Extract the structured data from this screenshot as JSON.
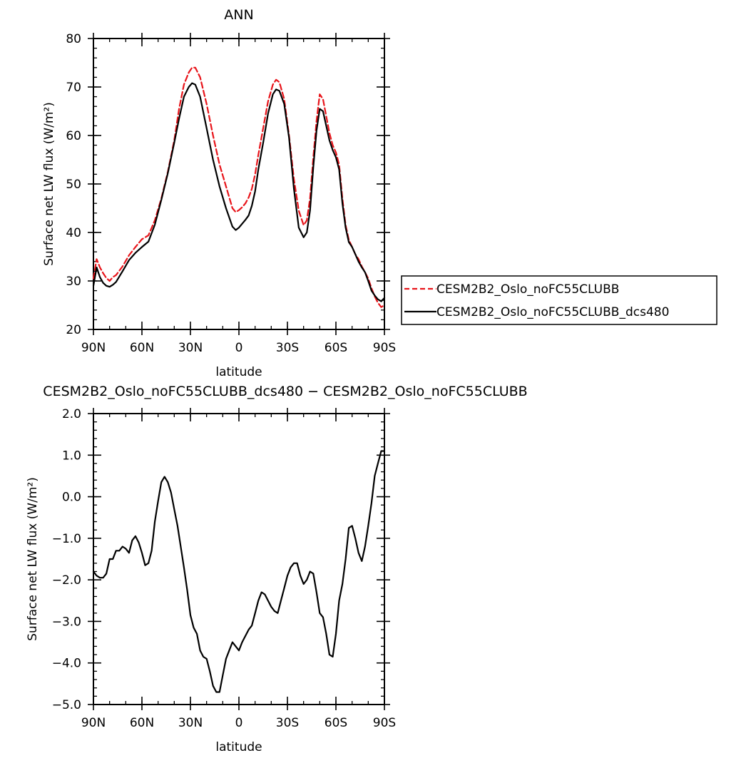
{
  "chart_data": [
    {
      "type": "line",
      "title": "ANN",
      "xlabel": "latitude",
      "ylabel": "Surface net LW flux (W/m²)",
      "xlim": [
        90,
        -90
      ],
      "ylim": [
        20,
        80
      ],
      "x_ticks": [
        90,
        60,
        30,
        0,
        -30,
        -60,
        -90
      ],
      "x_tick_labels": [
        "90N",
        "60N",
        "30N",
        "0",
        "30S",
        "60S",
        "90S"
      ],
      "y_ticks": [
        20,
        30,
        40,
        50,
        60,
        70,
        80
      ],
      "y_tick_labels": [
        "20",
        "30",
        "40",
        "50",
        "60",
        "70",
        "80"
      ],
      "legend_position": "right",
      "series": [
        {
          "name": "CESM2B2_Oslo_noFC55CLUBB",
          "color": "#e8141a",
          "dash": "dashed",
          "x": [
            90,
            88,
            86,
            84,
            82,
            80,
            78,
            76,
            72,
            68,
            64,
            60,
            56,
            52,
            48,
            44,
            40,
            37,
            34,
            31,
            29,
            27,
            24,
            20,
            16,
            12,
            8,
            4,
            2,
            0,
            -2,
            -4,
            -6,
            -8,
            -10,
            -12,
            -15,
            -18,
            -21,
            -23,
            -25,
            -28,
            -31,
            -34,
            -37,
            -40,
            -42,
            -44,
            -46,
            -48,
            -50,
            -52,
            -54,
            -56,
            -58,
            -60,
            -62,
            -64,
            -66,
            -68,
            -70,
            -72,
            -74,
            -76,
            -78,
            -80,
            -82,
            -84,
            -86,
            -88,
            -90
          ],
          "y": [
            30.5,
            34.5,
            32.8,
            31.6,
            30.6,
            30.0,
            30.8,
            31.2,
            33.0,
            35.3,
            37.0,
            38.6,
            39.4,
            42.5,
            47.0,
            52.5,
            59.0,
            65.5,
            70.5,
            73.0,
            74.0,
            74.0,
            72.0,
            66.5,
            60.0,
            54.0,
            49.5,
            45.0,
            44.2,
            44.6,
            45.2,
            46.0,
            47.2,
            49.0,
            52.0,
            56.0,
            61.5,
            67.0,
            70.5,
            71.5,
            71.0,
            67.5,
            60.0,
            51.0,
            44.5,
            41.5,
            42.5,
            47.0,
            55.5,
            63.0,
            68.5,
            67.5,
            64.0,
            60.5,
            58.0,
            56.5,
            54.0,
            47.0,
            41.5,
            38.5,
            37.0,
            35.5,
            34.5,
            33.0,
            31.8,
            30.5,
            28.5,
            26.8,
            25.5,
            24.6,
            25.0
          ]
        },
        {
          "name": "CESM2B2_Oslo_noFC55CLUBB_dcs480",
          "color": "#000000",
          "dash": "solid",
          "x": [
            90,
            88,
            86,
            84,
            82,
            80,
            78,
            76,
            72,
            68,
            64,
            60,
            56,
            52,
            48,
            44,
            40,
            37,
            34,
            31,
            29,
            27,
            24,
            20,
            16,
            12,
            8,
            4,
            2,
            0,
            -2,
            -4,
            -6,
            -8,
            -10,
            -12,
            -15,
            -18,
            -21,
            -23,
            -25,
            -28,
            -31,
            -34,
            -37,
            -40,
            -42,
            -44,
            -46,
            -48,
            -50,
            -52,
            -54,
            -56,
            -58,
            -60,
            -62,
            -64,
            -66,
            -68,
            -70,
            -72,
            -74,
            -76,
            -78,
            -80,
            -82,
            -84,
            -86,
            -88,
            -90
          ],
          "y": [
            29.0,
            32.8,
            30.8,
            29.6,
            29.0,
            28.8,
            29.2,
            29.8,
            32.0,
            34.3,
            35.8,
            37.0,
            38.1,
            41.6,
            46.7,
            52.2,
            58.5,
            63.5,
            68.0,
            70.0,
            70.8,
            70.5,
            68.0,
            61.5,
            55.0,
            49.5,
            45.0,
            41.2,
            40.5,
            41.0,
            41.8,
            42.6,
            43.5,
            45.5,
            48.5,
            53.0,
            58.5,
            64.5,
            68.5,
            69.5,
            69.2,
            66.5,
            59.5,
            49.0,
            41.0,
            39.0,
            40.0,
            44.5,
            53.5,
            61.0,
            65.5,
            65.0,
            62.0,
            59.0,
            57.0,
            55.5,
            53.0,
            46.0,
            41.0,
            38.0,
            37.0,
            35.5,
            34.0,
            32.8,
            31.8,
            30.0,
            28.0,
            27.0,
            26.2,
            25.8,
            26.5
          ]
        }
      ]
    },
    {
      "type": "line",
      "title": "CESM2B2_Oslo_noFC55CLUBB_dcs480 − CESM2B2_Oslo_noFC55CLUBB",
      "xlabel": "latitude",
      "ylabel": "Surface net LW flux (W/m²)",
      "xlim": [
        90,
        -90
      ],
      "ylim": [
        -5.0,
        2.0
      ],
      "x_ticks": [
        90,
        60,
        30,
        0,
        -30,
        -60,
        -90
      ],
      "x_tick_labels": [
        "90N",
        "60N",
        "30N",
        "0",
        "30S",
        "60S",
        "90S"
      ],
      "y_ticks": [
        2.0,
        1.0,
        0.0,
        -1.0,
        -2.0,
        -3.0,
        -4.0,
        -5.0
      ],
      "y_tick_labels": [
        "2.0",
        "1.0",
        "0.0",
        "−1.0",
        "−2.0",
        "−3.0",
        "−4.0",
        "−5.0"
      ],
      "series": [
        {
          "color": "#000000",
          "dash": "solid",
          "x": [
            90,
            88,
            86,
            84,
            82,
            80,
            78,
            76,
            74,
            72,
            70,
            68,
            66,
            64,
            62,
            60,
            58,
            56,
            54,
            52,
            50,
            48,
            46,
            44,
            42,
            40,
            38,
            36,
            34,
            32,
            30,
            28,
            26,
            24,
            22,
            20,
            18,
            16,
            14,
            12,
            10,
            8,
            6,
            4,
            2,
            0,
            -2,
            -4,
            -6,
            -8,
            -10,
            -12,
            -14,
            -16,
            -18,
            -20,
            -22,
            -24,
            -26,
            -28,
            -30,
            -32,
            -34,
            -36,
            -38,
            -40,
            -42,
            -44,
            -46,
            -48,
            -50,
            -52,
            -54,
            -56,
            -58,
            -60,
            -62,
            -64,
            -66,
            -68,
            -70,
            -72,
            -74,
            -76,
            -78,
            -80,
            -82,
            -84,
            -86,
            -88,
            -90
          ],
          "y": [
            -1.8,
            -1.9,
            -1.95,
            -1.95,
            -1.85,
            -1.5,
            -1.5,
            -1.3,
            -1.3,
            -1.2,
            -1.25,
            -1.35,
            -1.05,
            -0.95,
            -1.1,
            -1.35,
            -1.65,
            -1.6,
            -1.3,
            -0.6,
            -0.1,
            0.35,
            0.48,
            0.35,
            0.1,
            -0.3,
            -0.7,
            -1.2,
            -1.7,
            -2.25,
            -2.85,
            -3.15,
            -3.3,
            -3.7,
            -3.85,
            -3.9,
            -4.2,
            -4.55,
            -4.7,
            -4.7,
            -4.3,
            -3.9,
            -3.7,
            -3.5,
            -3.6,
            -3.7,
            -3.5,
            -3.35,
            -3.2,
            -3.1,
            -2.8,
            -2.5,
            -2.3,
            -2.35,
            -2.5,
            -2.65,
            -2.75,
            -2.8,
            -2.5,
            -2.2,
            -1.9,
            -1.7,
            -1.6,
            -1.6,
            -1.9,
            -2.1,
            -2.0,
            -1.8,
            -1.85,
            -2.3,
            -2.8,
            -2.9,
            -3.3,
            -3.8,
            -3.85,
            -3.3,
            -2.5,
            -2.1,
            -1.5,
            -0.75,
            -0.7,
            -1.0,
            -1.35,
            -1.55,
            -1.2,
            -0.7,
            -0.15,
            0.5,
            0.8,
            1.1,
            1.1
          ]
        }
      ]
    }
  ]
}
